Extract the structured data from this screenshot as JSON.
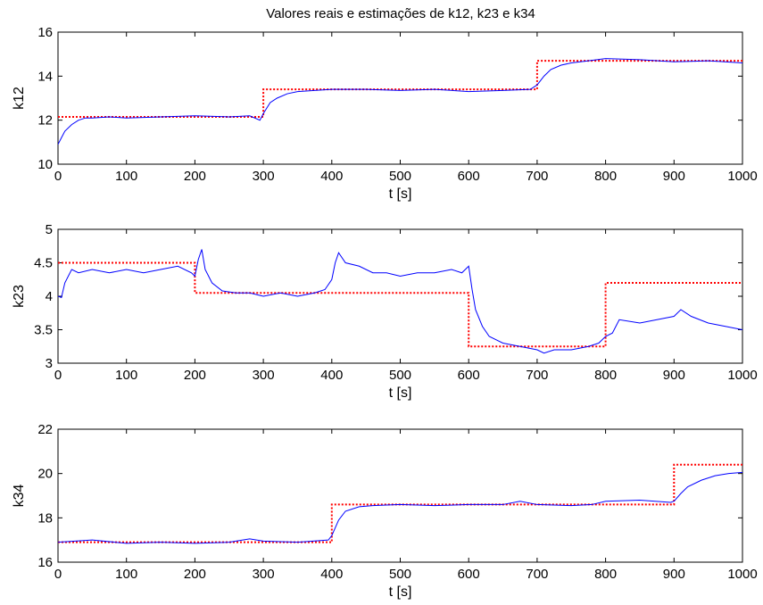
{
  "figure_title": "Valores reais e estimações de k12, k23 e k34",
  "colors": {
    "estimate": "#0000ff",
    "real": "#ff0000",
    "axes": "#000000",
    "background": "#ffffff"
  },
  "chart_data": [
    {
      "type": "line",
      "title": "Valores reais e estimações de k12, k23 e k34",
      "xlabel": "t [s]",
      "ylabel": "k12",
      "xlim": [
        0,
        1000
      ],
      "ylim": [
        10,
        16
      ],
      "xticks": [
        "0",
        "100",
        "200",
        "300",
        "400",
        "500",
        "600",
        "700",
        "800",
        "900",
        "1000"
      ],
      "yticks": [
        "10",
        "12",
        "14",
        "16"
      ],
      "grid": false,
      "series": [
        {
          "style": "dotted red",
          "x": [
            0,
            300,
            300,
            700,
            700,
            1000
          ],
          "y": [
            12.15,
            12.15,
            13.4,
            13.4,
            14.7,
            14.7
          ]
        },
        {
          "style": "solid blue",
          "x": [
            0,
            5,
            10,
            20,
            30,
            40,
            50,
            75,
            100,
            150,
            200,
            250,
            280,
            295,
            300,
            310,
            320,
            335,
            350,
            375,
            400,
            450,
            500,
            550,
            600,
            650,
            690,
            700,
            710,
            720,
            735,
            750,
            775,
            800,
            850,
            900,
            950,
            1000
          ],
          "y": [
            10.9,
            11.2,
            11.5,
            11.8,
            12.0,
            12.1,
            12.1,
            12.15,
            12.1,
            12.15,
            12.2,
            12.15,
            12.2,
            12.0,
            12.3,
            12.8,
            13.0,
            13.2,
            13.3,
            13.35,
            13.4,
            13.4,
            13.35,
            13.4,
            13.3,
            13.35,
            13.4,
            13.6,
            14.0,
            14.3,
            14.5,
            14.6,
            14.7,
            14.8,
            14.75,
            14.65,
            14.7,
            14.6
          ]
        }
      ]
    },
    {
      "type": "line",
      "xlabel": "t [s]",
      "ylabel": "k23",
      "xlim": [
        0,
        1000
      ],
      "ylim": [
        3,
        5
      ],
      "xticks": [
        "0",
        "100",
        "200",
        "300",
        "400",
        "500",
        "600",
        "700",
        "800",
        "900",
        "1000"
      ],
      "yticks": [
        "3",
        "3.5",
        "4",
        "4.5",
        "5"
      ],
      "grid": false,
      "series": [
        {
          "style": "dotted red",
          "x": [
            0,
            200,
            200,
            600,
            600,
            800,
            800,
            1000
          ],
          "y": [
            4.5,
            4.5,
            4.05,
            4.05,
            3.25,
            3.25,
            4.2,
            4.2
          ]
        },
        {
          "style": "solid blue",
          "x": [
            0,
            5,
            10,
            20,
            30,
            50,
            75,
            100,
            125,
            150,
            175,
            195,
            200,
            205,
            210,
            215,
            225,
            240,
            260,
            280,
            300,
            325,
            350,
            375,
            390,
            400,
            405,
            410,
            420,
            440,
            460,
            480,
            500,
            525,
            550,
            575,
            590,
            600,
            605,
            610,
            620,
            630,
            650,
            675,
            700,
            710,
            725,
            750,
            775,
            790,
            800,
            810,
            820,
            850,
            875,
            900,
            910,
            925,
            950,
            975,
            1000
          ],
          "y": [
            4.0,
            3.98,
            4.2,
            4.4,
            4.35,
            4.4,
            4.35,
            4.4,
            4.35,
            4.4,
            4.45,
            4.35,
            4.3,
            4.55,
            4.7,
            4.4,
            4.2,
            4.08,
            4.05,
            4.05,
            4.0,
            4.05,
            4.0,
            4.05,
            4.1,
            4.25,
            4.5,
            4.65,
            4.5,
            4.45,
            4.35,
            4.35,
            4.3,
            4.35,
            4.35,
            4.4,
            4.35,
            4.45,
            4.1,
            3.8,
            3.55,
            3.4,
            3.3,
            3.25,
            3.2,
            3.15,
            3.2,
            3.2,
            3.25,
            3.3,
            3.4,
            3.45,
            3.65,
            3.6,
            3.65,
            3.7,
            3.8,
            3.7,
            3.6,
            3.55,
            3.5
          ]
        }
      ]
    },
    {
      "type": "line",
      "xlabel": "t [s]",
      "ylabel": "k34",
      "xlim": [
        0,
        1000
      ],
      "ylim": [
        16,
        22
      ],
      "xticks": [
        "0",
        "100",
        "200",
        "300",
        "400",
        "500",
        "600",
        "700",
        "800",
        "900",
        "1000"
      ],
      "yticks": [
        "16",
        "18",
        "20",
        "22"
      ],
      "grid": false,
      "series": [
        {
          "style": "dotted red",
          "x": [
            0,
            400,
            400,
            900,
            900,
            1000
          ],
          "y": [
            16.9,
            16.9,
            18.6,
            18.6,
            20.4,
            20.4
          ],
          "dashed": true
        },
        {
          "style": "solid blue",
          "x": [
            0,
            50,
            100,
            150,
            200,
            250,
            280,
            300,
            350,
            395,
            400,
            410,
            420,
            440,
            460,
            500,
            550,
            600,
            650,
            675,
            700,
            750,
            780,
            800,
            850,
            895,
            900,
            910,
            920,
            940,
            960,
            980,
            1000
          ],
          "y": [
            16.9,
            17.0,
            16.85,
            16.9,
            16.85,
            16.9,
            17.05,
            16.95,
            16.9,
            17.0,
            17.2,
            17.9,
            18.3,
            18.5,
            18.55,
            18.6,
            18.55,
            18.6,
            18.6,
            18.75,
            18.6,
            18.55,
            18.6,
            18.75,
            18.8,
            18.7,
            18.75,
            19.1,
            19.4,
            19.7,
            19.9,
            20.0,
            20.05
          ]
        }
      ]
    }
  ]
}
